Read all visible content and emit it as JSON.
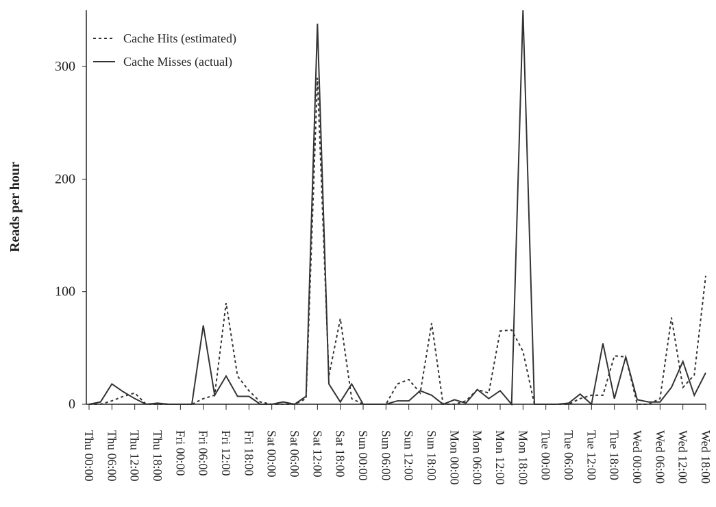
{
  "chart_data": {
    "type": "line",
    "y_label": "Reads per hour",
    "categories": [
      "Thu 00:00",
      null,
      "Thu 06:00",
      null,
      "Thu 12:00",
      null,
      "Thu 18:00",
      null,
      "Fri 00:00",
      null,
      "Fri 06:00",
      null,
      "Fri 12:00",
      null,
      "Fri 18:00",
      null,
      "Sat 00:00",
      null,
      "Sat 06:00",
      null,
      "Sat 12:00",
      null,
      "Sat 18:00",
      null,
      "Sun 00:00",
      null,
      "Sun 06:00",
      null,
      "Sun 12:00",
      null,
      "Sun 18:00",
      null,
      "Mon 00:00",
      null,
      "Mon 06:00",
      null,
      "Mon 12:00",
      null,
      "Mon 18:00",
      null,
      "Tue 00:00",
      null,
      "Tue 06:00",
      null,
      "Tue 12:00",
      null,
      "Tue 18:00",
      null,
      "Wed 00:00",
      null,
      "Wed 06:00",
      null,
      "Wed 12:00",
      null,
      "Wed 18:00"
    ],
    "series": [
      {
        "name": "Cache Hits (estimated)",
        "color": "#333333",
        "style": "dashed",
        "values": [
          0,
          0,
          3,
          7,
          10,
          0,
          0,
          0,
          0,
          0,
          5,
          8,
          90,
          25,
          12,
          2,
          0,
          0,
          0,
          5,
          290,
          25,
          76,
          5,
          0,
          0,
          0,
          18,
          22,
          10,
          72,
          0,
          0,
          3,
          13,
          10,
          65,
          66,
          47,
          0,
          0,
          0,
          0,
          5,
          8,
          8,
          43,
          42,
          0,
          0,
          5,
          77,
          15,
          26,
          114
        ]
      },
      {
        "name": "Cache Misses (actual)",
        "color": "#333333",
        "style": "solid",
        "values": [
          0,
          2,
          18,
          11,
          5,
          0,
          1,
          0,
          0,
          0,
          70,
          8,
          25,
          7,
          7,
          0,
          0,
          2,
          0,
          7,
          338,
          18,
          2,
          18,
          0,
          0,
          0,
          3,
          3,
          12,
          8,
          0,
          4,
          1,
          13,
          5,
          12,
          0,
          350,
          0,
          0,
          0,
          1,
          9,
          0,
          54,
          5,
          42,
          4,
          2,
          2,
          15,
          38,
          8,
          28
        ]
      }
    ],
    "ylim": [
      0,
      350
    ],
    "yticks": [
      0,
      100,
      200,
      300
    ],
    "grid": false,
    "legend": "upper left"
  }
}
